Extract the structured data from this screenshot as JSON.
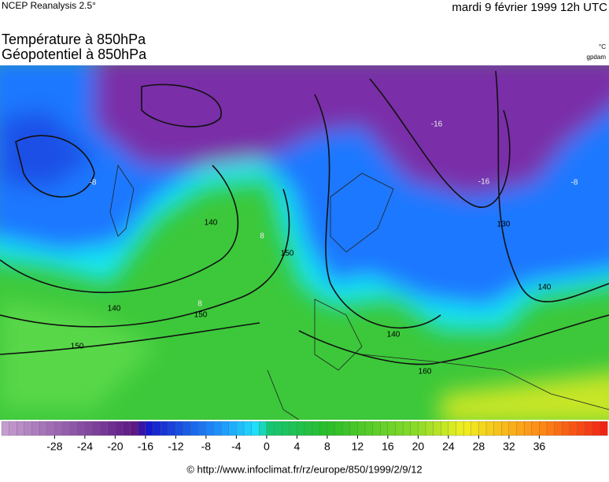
{
  "header": {
    "source": "NCEP Reanalysis 2.5°",
    "date": "mardi 9 février 1999 12h UTC"
  },
  "titles": [
    "Température à 850hPa",
    "Géopotentiel à 850hPa"
  ],
  "units": [
    "°C",
    "gpdam"
  ],
  "contour_labels": [
    150,
    140,
    150,
    140,
    130,
    140,
    150,
    160,
    -16,
    -16,
    -8,
    -8,
    8,
    8,
    140
  ],
  "colorbar": {
    "range": [
      -35,
      45
    ],
    "ticks": [
      -28,
      -24,
      -20,
      -16,
      -12,
      -8,
      -4,
      0,
      4,
      8,
      12,
      16,
      20,
      24,
      28,
      32,
      36
    ]
  },
  "footer": "© http://www.infoclimat.fr/rz/europe/850/1999/2/9/12"
}
